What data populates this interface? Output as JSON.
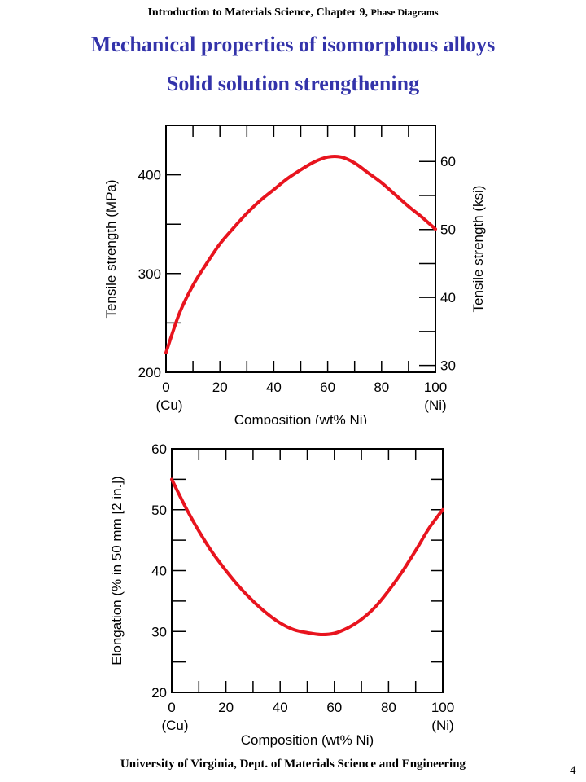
{
  "header": {
    "main": "Introduction to Materials Science, Chapter 9, ",
    "sub": "Phase Diagrams"
  },
  "titles": {
    "line1": "Mechanical properties of isomorphous alloys",
    "line2": "Solid solution strengthening"
  },
  "footer": "University of Virginia, Dept. of Materials Science and Engineering",
  "page_number": "4",
  "colors": {
    "curve": "#e8141e",
    "title": "#3333aa"
  },
  "chart_data": [
    {
      "type": "line",
      "xlabel": "Composition (wt% Ni)",
      "ylabel": "Tensile strength (MPa)",
      "y2label": "Tensile strength (ksi)",
      "xlim": [
        0,
        100
      ],
      "ylim": [
        200,
        450
      ],
      "y2lim": [
        29,
        65.3
      ],
      "xticks": [
        0,
        20,
        40,
        60,
        80,
        100
      ],
      "xtick_labels": [
        "0",
        "20",
        "40",
        "60",
        "80",
        "100"
      ],
      "x_end_labels": [
        "(Cu)",
        "(Ni)"
      ],
      "yticks": [
        200,
        300,
        400
      ],
      "yticks_minor": [
        250,
        350
      ],
      "y2ticks": [
        30,
        40,
        50,
        60
      ],
      "y2ticks_minor": [
        35,
        45,
        55
      ],
      "grid": false,
      "series": [
        {
          "x": [
            0,
            5,
            10,
            15,
            20,
            25,
            30,
            35,
            40,
            45,
            50,
            55,
            60,
            65,
            70,
            75,
            80,
            85,
            90,
            95,
            100
          ],
          "y": [
            220,
            260,
            288,
            310,
            330,
            346,
            361,
            374,
            385,
            396,
            405,
            413,
            418,
            418,
            412,
            402,
            392,
            380,
            368,
            357,
            345
          ]
        }
      ]
    },
    {
      "type": "line",
      "xlabel": "Composition (wt% Ni)",
      "ylabel": "Elongation (% in 50 mm [2 in.])",
      "xlim": [
        0,
        100
      ],
      "ylim": [
        20,
        60
      ],
      "xticks": [
        0,
        20,
        40,
        60,
        80,
        100
      ],
      "xtick_labels": [
        "0",
        "20",
        "40",
        "60",
        "80",
        "100"
      ],
      "x_end_labels": [
        "(Cu)",
        "(Ni)"
      ],
      "yticks": [
        20,
        30,
        40,
        50,
        60
      ],
      "yticks_minor": [
        25,
        35,
        45,
        55
      ],
      "grid": false,
      "series": [
        {
          "x": [
            0,
            5,
            10,
            15,
            20,
            25,
            30,
            35,
            40,
            45,
            50,
            55,
            60,
            65,
            70,
            75,
            80,
            85,
            90,
            95,
            100
          ],
          "y": [
            55,
            50.5,
            46.5,
            43,
            40,
            37.3,
            35,
            33,
            31.4,
            30.3,
            29.8,
            29.5,
            29.7,
            30.6,
            32,
            34,
            36.7,
            39.8,
            43.3,
            47,
            50
          ]
        }
      ]
    }
  ]
}
